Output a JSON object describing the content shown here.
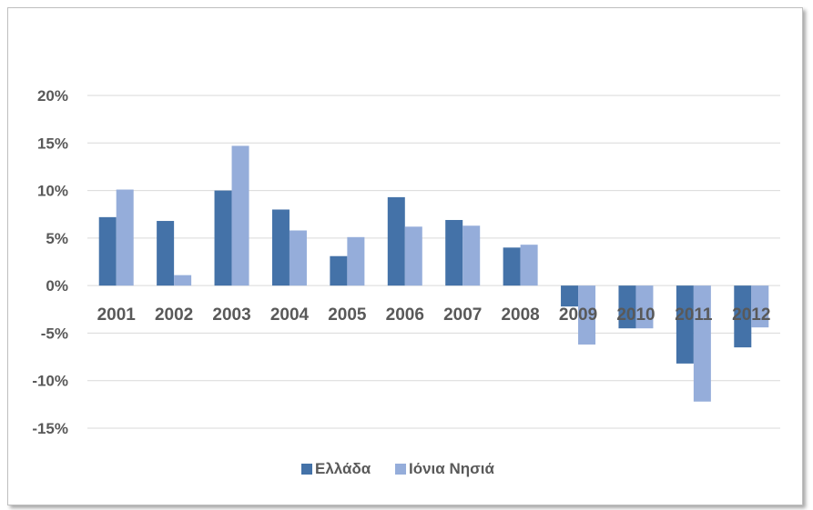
{
  "chart_data": {
    "type": "bar",
    "title": "",
    "xlabel": "",
    "ylabel": "",
    "categories": [
      "2001",
      "2002",
      "2003",
      "2004",
      "2005",
      "2006",
      "2007",
      "2008",
      "2009",
      "2010",
      "2011",
      "2012"
    ],
    "series": [
      {
        "name": "Ελλάδα",
        "color": "#4472a8",
        "values": [
          7.2,
          6.8,
          10.0,
          8.0,
          3.1,
          9.3,
          6.9,
          4.0,
          -2.2,
          -4.5,
          -8.2,
          -6.5
        ]
      },
      {
        "name": "Ιόνια Νησιά",
        "color": "#95adda",
        "values": [
          10.1,
          1.1,
          14.7,
          5.8,
          5.1,
          6.2,
          6.3,
          4.3,
          -6.2,
          -4.5,
          -12.2,
          -4.4
        ]
      }
    ],
    "ylim": [
      -15,
      20
    ],
    "yticks": [
      20,
      15,
      10,
      5,
      0,
      -5,
      -10,
      -15
    ],
    "ytick_labels": [
      "20%",
      "15%",
      "10%",
      "5%",
      "0%",
      "-5%",
      "-10%",
      "-15%"
    ],
    "grid": true,
    "legend": "bottom"
  }
}
